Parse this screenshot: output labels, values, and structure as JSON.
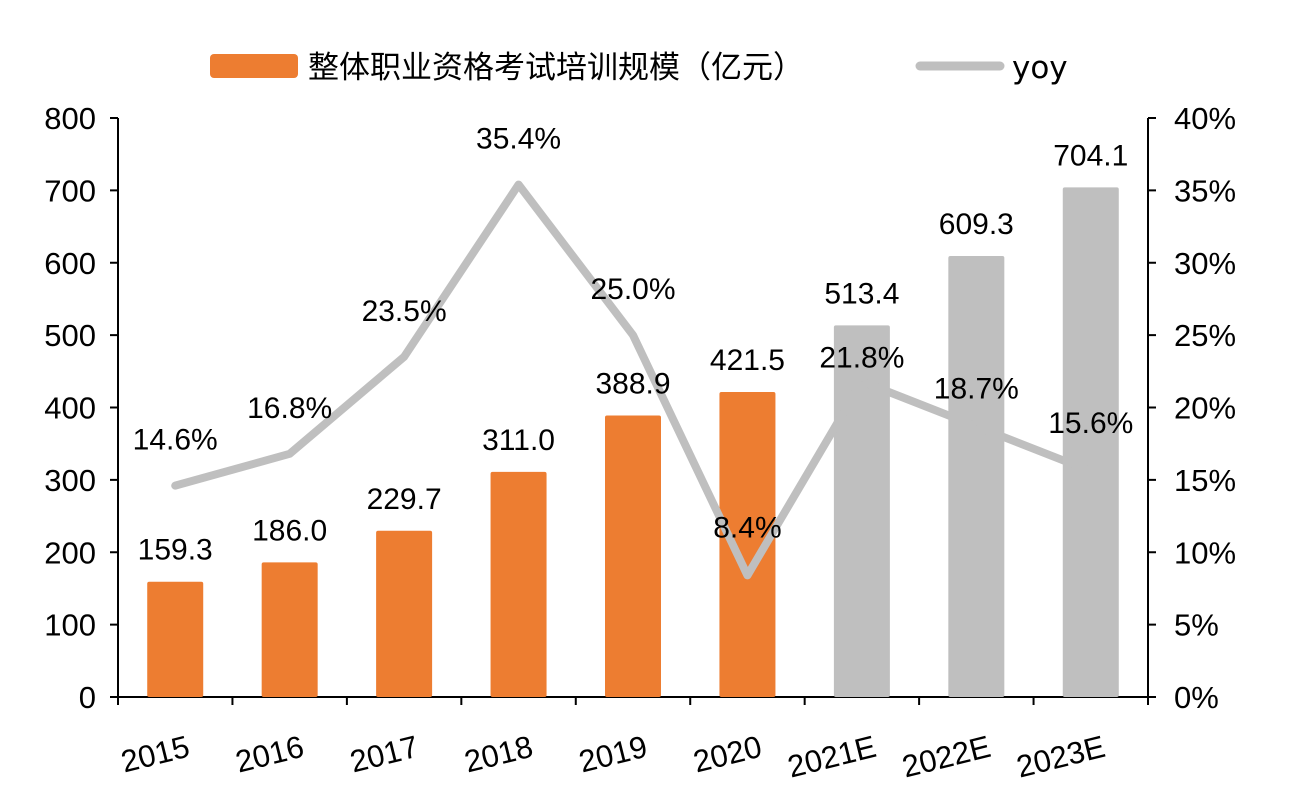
{
  "chart_data": {
    "type": "bar",
    "categories": [
      "2015",
      "2016",
      "2017",
      "2018",
      "2019",
      "2020",
      "2021E",
      "2022E",
      "2023E"
    ],
    "series": [
      {
        "name": "整体职业资格考试培训规模（亿元）",
        "type": "bar",
        "axis": "left",
        "values": [
          159.3,
          186.0,
          229.7,
          311.0,
          388.9,
          421.5,
          513.4,
          609.3,
          704.1
        ],
        "value_labels": [
          "159.3",
          "186.0",
          "229.7",
          "311.0",
          "388.9",
          "421.5",
          "513.4",
          "609.3",
          "704.1"
        ],
        "colors": [
          "#ED7D31",
          "#ED7D31",
          "#ED7D31",
          "#ED7D31",
          "#ED7D31",
          "#ED7D31",
          "#BFBFBF",
          "#BFBFBF",
          "#BFBFBF"
        ]
      },
      {
        "name": "yoy",
        "type": "line",
        "axis": "right",
        "values": [
          14.6,
          16.8,
          23.5,
          35.4,
          25.0,
          8.4,
          21.8,
          18.7,
          15.6
        ],
        "value_labels": [
          "14.6%",
          "16.8%",
          "23.5%",
          "35.4%",
          "25.0%",
          "8.4%",
          "21.8%",
          "18.7%",
          "15.6%"
        ],
        "color": "#BFBFBF"
      }
    ],
    "left_axis": {
      "ylim": [
        0,
        800
      ],
      "ticks": [
        "0",
        "100",
        "200",
        "300",
        "400",
        "500",
        "600",
        "700",
        "800"
      ]
    },
    "right_axis": {
      "ylim": [
        0,
        40
      ],
      "ticks": [
        "0%",
        "5%",
        "10%",
        "15%",
        "20%",
        "25%",
        "30%",
        "35%",
        "40%"
      ]
    },
    "legend": {
      "placement": "top",
      "items": [
        {
          "label": "整体职业资格考试培训规模（亿元）",
          "color": "#ED7D31",
          "kind": "bar"
        },
        {
          "label": "yoy",
          "color": "#BFBFBF",
          "kind": "line"
        }
      ]
    },
    "grid": false
  }
}
